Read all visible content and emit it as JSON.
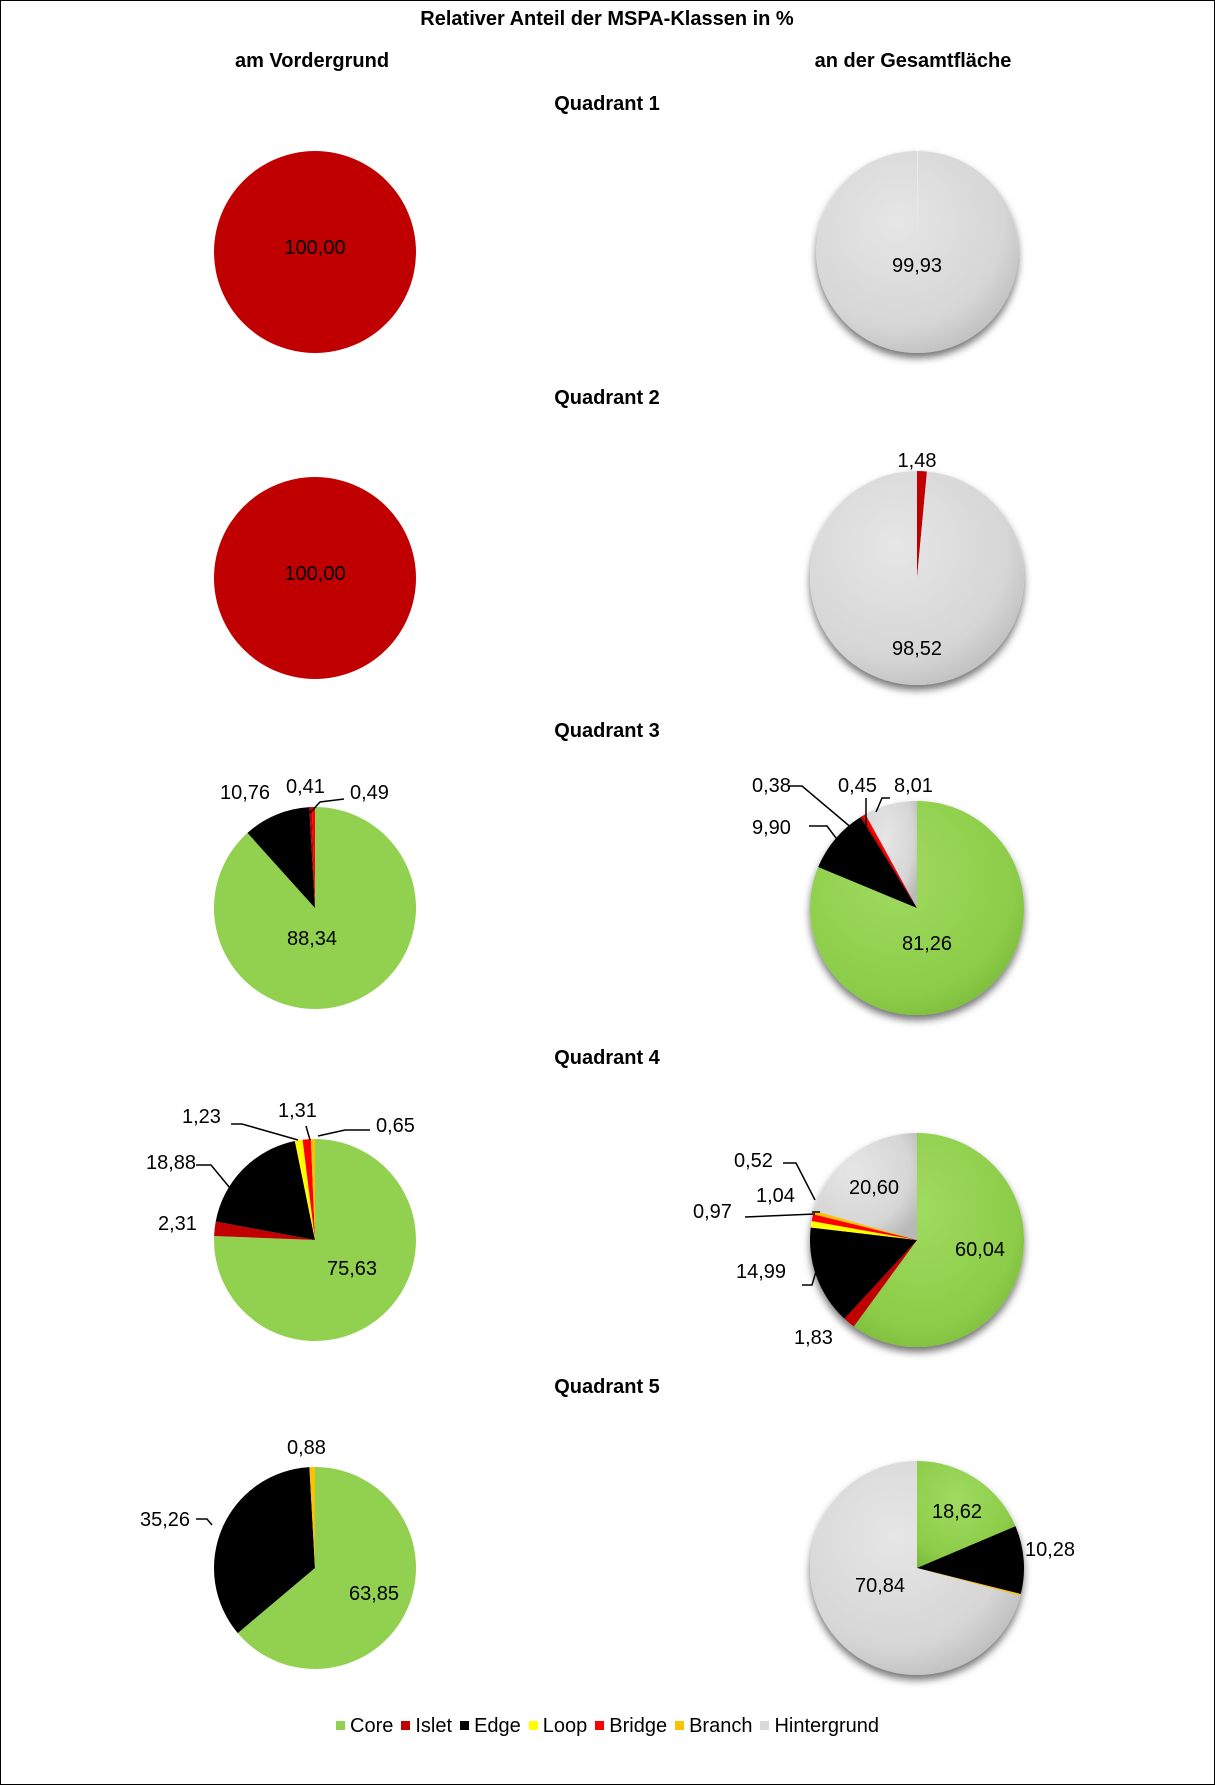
{
  "title": "Relativer Anteil der MSPA-Klassen in %",
  "columns": {
    "left": "am Vordergrund",
    "right": "an der Gesamtfläche"
  },
  "quadrant_titles": [
    "Quadrant 1",
    "Quadrant 2",
    "Quadrant 3",
    "Quadrant 4",
    "Quadrant 5"
  ],
  "legend": [
    {
      "label": "Core",
      "color": "#92D050"
    },
    {
      "label": "Islet",
      "color": "#C00000"
    },
    {
      "label": "Edge",
      "color": "#000000"
    },
    {
      "label": "Loop",
      "color": "#FFFF00"
    },
    {
      "label": "Bridge",
      "color": "#FF0000"
    },
    {
      "label": "Branch",
      "color": "#FFC000"
    },
    {
      "label": "Hintergrund",
      "color": "#D9D9D9"
    }
  ],
  "chart_data": [
    {
      "type": "pie",
      "quadrant": "Quadrant 1",
      "column": "am Vordergrund",
      "slices": [
        {
          "class": "Islet",
          "value": 100.0,
          "label": "100,00"
        }
      ]
    },
    {
      "type": "pie",
      "quadrant": "Quadrant 1",
      "column": "an der Gesamtfläche",
      "slices": [
        {
          "class": "Islet",
          "value": 0.07,
          "label": ""
        },
        {
          "class": "Hintergrund",
          "value": 99.93,
          "label": "99,93"
        }
      ]
    },
    {
      "type": "pie",
      "quadrant": "Quadrant 2",
      "column": "am Vordergrund",
      "slices": [
        {
          "class": "Islet",
          "value": 100.0,
          "label": "100,00"
        }
      ]
    },
    {
      "type": "pie",
      "quadrant": "Quadrant 2",
      "column": "an der Gesamtfläche",
      "slices": [
        {
          "class": "Islet",
          "value": 1.48,
          "label": "1,48"
        },
        {
          "class": "Hintergrund",
          "value": 98.52,
          "label": "98,52"
        }
      ]
    },
    {
      "type": "pie",
      "quadrant": "Quadrant 3",
      "column": "am Vordergrund",
      "slices": [
        {
          "class": "Core",
          "value": 88.34,
          "label": "88,34"
        },
        {
          "class": "Edge",
          "value": 10.76,
          "label": "10,76"
        },
        {
          "class": "Islet",
          "value": 0.41,
          "label": "0,41"
        },
        {
          "class": "Bridge",
          "value": 0.49,
          "label": "0,49"
        }
      ]
    },
    {
      "type": "pie",
      "quadrant": "Quadrant 3",
      "column": "an der Gesamtfläche",
      "slices": [
        {
          "class": "Core",
          "value": 81.26,
          "label": "81,26"
        },
        {
          "class": "Edge",
          "value": 9.9,
          "label": "9,90"
        },
        {
          "class": "Islet",
          "value": 0.38,
          "label": "0,38"
        },
        {
          "class": "Bridge",
          "value": 0.45,
          "label": "0,45"
        },
        {
          "class": "Hintergrund",
          "value": 8.01,
          "label": "8,01"
        }
      ]
    },
    {
      "type": "pie",
      "quadrant": "Quadrant 4",
      "column": "am Vordergrund",
      "slices": [
        {
          "class": "Core",
          "value": 75.63,
          "label": "75,63"
        },
        {
          "class": "Islet",
          "value": 2.31,
          "label": "2,31"
        },
        {
          "class": "Edge",
          "value": 18.88,
          "label": "18,88"
        },
        {
          "class": "Loop",
          "value": 1.23,
          "label": "1,23"
        },
        {
          "class": "Bridge",
          "value": 1.31,
          "label": "1,31"
        },
        {
          "class": "Branch",
          "value": 0.65,
          "label": "0,65"
        }
      ]
    },
    {
      "type": "pie",
      "quadrant": "Quadrant 4",
      "column": "an der Gesamtfläche",
      "slices": [
        {
          "class": "Core",
          "value": 60.04,
          "label": "60,04"
        },
        {
          "class": "Islet",
          "value": 1.83,
          "label": "1,83"
        },
        {
          "class": "Edge",
          "value": 14.99,
          "label": "14,99"
        },
        {
          "class": "Loop",
          "value": 0.97,
          "label": "0,97"
        },
        {
          "class": "Bridge",
          "value": 1.04,
          "label": "1,04"
        },
        {
          "class": "Branch",
          "value": 0.52,
          "label": "0,52"
        },
        {
          "class": "Hintergrund",
          "value": 20.6,
          "label": "20,60"
        }
      ]
    },
    {
      "type": "pie",
      "quadrant": "Quadrant 5",
      "column": "am Vordergrund",
      "slices": [
        {
          "class": "Core",
          "value": 63.85,
          "label": "63,85"
        },
        {
          "class": "Edge",
          "value": 35.26,
          "label": "35,26"
        },
        {
          "class": "Branch",
          "value": 0.88,
          "label": "0,88"
        }
      ]
    },
    {
      "type": "pie",
      "quadrant": "Quadrant 5",
      "column": "an der Gesamtfläche",
      "slices": [
        {
          "class": "Core",
          "value": 18.62,
          "label": "18,62"
        },
        {
          "class": "Edge",
          "value": 10.28,
          "label": "10,28"
        },
        {
          "class": "Branch",
          "value": 0.26,
          "label": ""
        },
        {
          "class": "Hintergrund",
          "value": 70.84,
          "label": "70,84"
        }
      ]
    }
  ]
}
